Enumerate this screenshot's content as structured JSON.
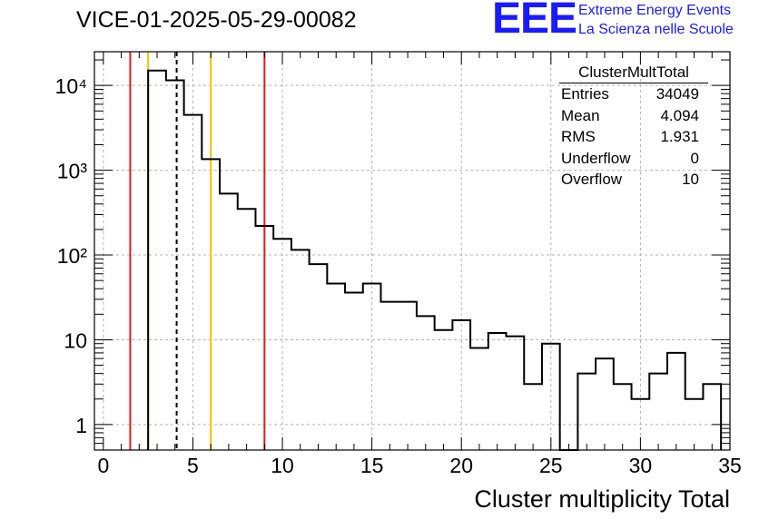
{
  "header": {
    "run_title": "VICE-01-2025-05-29-00082",
    "logo_text": "EEE",
    "logo_line1": "Extreme Energy Events",
    "logo_line2": "La Scienza nelle Scuole"
  },
  "stats": {
    "title": "ClusterMultTotal",
    "rows": [
      {
        "label": "Entries",
        "value": "34049"
      },
      {
        "label": "Mean",
        "value": "4.094"
      },
      {
        "label": "RMS",
        "value": "1.931"
      },
      {
        "label": "Underflow",
        "value": "0"
      },
      {
        "label": "Overflow",
        "value": "10"
      }
    ]
  },
  "colors": {
    "histogram": "#000000",
    "red_line": "#e41a1c",
    "yellow_line": "#f2c200",
    "mean_line": "#000000",
    "grid": "#b4b4b4",
    "logo": "#1a1aff"
  },
  "chart_data": {
    "type": "histogram",
    "xlabel": "Cluster multiplicity Total",
    "ylabel": "",
    "xlim": [
      -0.5,
      35
    ],
    "ylim": [
      0.5,
      25000
    ],
    "yscale": "log",
    "grid": true,
    "bin_width": 1,
    "bins_low_edges": [
      2.5,
      3.5,
      4.5,
      5.5,
      6.5,
      7.5,
      8.5,
      9.5,
      10.5,
      11.5,
      12.5,
      13.5,
      14.5,
      15.5,
      16.5,
      17.5,
      18.5,
      19.5,
      20.5,
      21.5,
      22.5,
      23.5,
      24.5,
      25.5,
      26.5,
      27.5,
      28.5,
      29.5,
      30.5,
      31.5,
      32.5,
      33.5
    ],
    "counts": [
      15000,
      11500,
      4500,
      1350,
      530,
      350,
      220,
      155,
      115,
      78,
      46,
      36,
      46,
      28,
      28,
      19,
      13,
      17,
      8,
      12,
      11,
      3,
      9,
      0,
      4,
      6,
      3,
      2,
      4,
      7,
      2,
      3
    ],
    "x_ticks": [
      0,
      5,
      10,
      15,
      20,
      25,
      30,
      35
    ],
    "x_tick_labels": [
      "0",
      "5",
      "10",
      "15",
      "20",
      "25",
      "30",
      "35"
    ],
    "y_ticks": [
      1,
      10,
      100,
      1000,
      10000
    ],
    "y_tick_labels": [
      "1",
      "10",
      "10²",
      "10³",
      "10⁴"
    ],
    "vertical_lines": [
      {
        "x": 1.5,
        "style": "red"
      },
      {
        "x": 2.5,
        "style": "yellow"
      },
      {
        "x": 4.094,
        "style": "mean-dashed"
      },
      {
        "x": 6.0,
        "style": "yellow"
      },
      {
        "x": 9.0,
        "style": "red"
      }
    ]
  }
}
